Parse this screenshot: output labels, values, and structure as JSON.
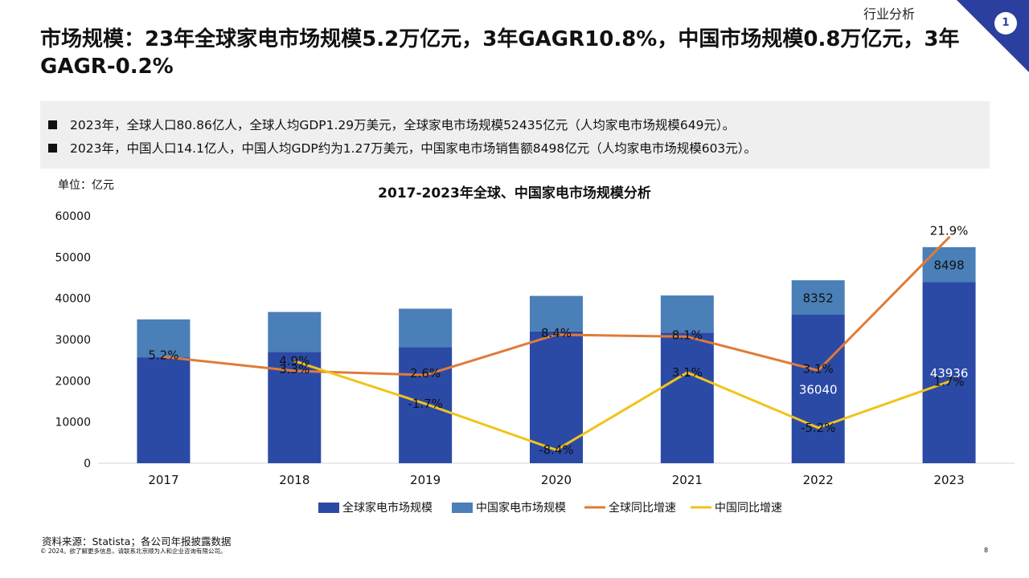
{
  "header": {
    "section_tag": "行业分析",
    "page_badge": "1",
    "headline": "市场规模：23年全球家电市场规模5.2万亿元，3年GAGR10.8%，中国市场规模0.8万亿元，3年GAGR-0.2%"
  },
  "summary": {
    "bullets": [
      "2023年，全球人口80.86亿人，全球人均GDP1.29万美元，全球家电市场规模52435亿元（人均家电市场规模649元）。",
      "2023年，中国人口14.1亿人，中国人均GDP约为1.27万美元，中国家电市场销售额8498亿元（人均家电市场规模603元）。"
    ]
  },
  "chart_data": {
    "type": "bar",
    "title": "2017-2023年全球、中国家电市场规模分析",
    "unit": "单位：亿元",
    "categories": [
      "2017",
      "2018",
      "2019",
      "2020",
      "2021",
      "2022",
      "2023"
    ],
    "ylim": [
      0,
      60000
    ],
    "yticks": [
      "0",
      "10000",
      "20000",
      "30000",
      "40000",
      "50000",
      "60000"
    ],
    "series": [
      {
        "name": "全球家电市场规模",
        "kind": "stacked-bar",
        "color": "#2b4aa6",
        "values": [
          25700,
          27000,
          28200,
          32000,
          31700,
          36040,
          43936
        ],
        "labels": [
          "",
          "",
          "",
          "",
          "",
          "36040",
          "43936"
        ]
      },
      {
        "name": "中国家电市场规模",
        "kind": "stacked-bar",
        "color": "#4a7fb8",
        "values": [
          9200,
          9700,
          9300,
          8600,
          9000,
          8352,
          8498
        ],
        "labels": [
          "",
          "",
          "",
          "",
          "",
          "8352",
          "8498"
        ]
      },
      {
        "name": "全球同比增速",
        "kind": "line",
        "color": "#e07b39",
        "values": [
          25800,
          22400,
          21400,
          31200,
          30700,
          22500,
          54800
        ],
        "labels": [
          "5.2%",
          "3.3%",
          "2.6%",
          "8.4%",
          "8.1%",
          "3.1%",
          "21.9%"
        ]
      },
      {
        "name": "中国同比增速",
        "kind": "line",
        "color": "#f2c31a",
        "values": [
          null,
          24800,
          14400,
          3200,
          22000,
          8600,
          19800
        ],
        "labels": [
          "",
          "4.9%",
          "-1.7%",
          "-8.4%",
          "3.1%",
          "-5.2%",
          "1.7%"
        ]
      }
    ],
    "legend": "bottom",
    "grid": false
  },
  "footer": {
    "source": "资料来源：Statista；各公司年报披露数据",
    "copyright": "© 2024。欲了解更多信息，请联系北京顺为人和企业咨询有限公司。",
    "page_number": "8"
  },
  "colors": {
    "accent": "#2a3f9e",
    "panel": "#efefef"
  }
}
